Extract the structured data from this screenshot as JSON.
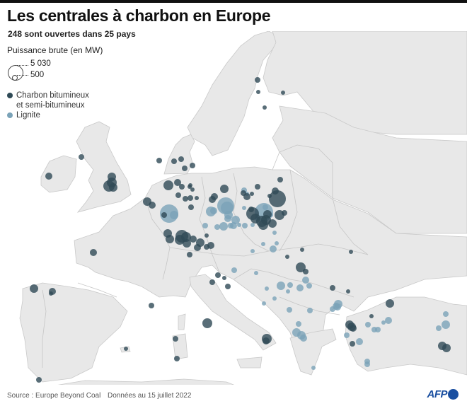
{
  "header": {
    "title": "Les centrales à charbon en Europe",
    "subtitle": "248 sont ouvertes dans 25 pays"
  },
  "legend": {
    "size_title": "Puissance brute (en MW)",
    "size_max": "5 030",
    "size_min": "500",
    "types": [
      {
        "label_line1": "Charbon bitumineux",
        "label_line2": "et semi-bitumineux",
        "color": "#2f4a56"
      },
      {
        "label_line1": "Lignite",
        "label_line2": "",
        "color": "#7ba3b8"
      }
    ]
  },
  "footer": {
    "source": "Source : Europe Beyond Coal",
    "date": "Données au 15 juillet 2022",
    "logo": "AFP"
  },
  "colors": {
    "bituminous": "#2f4a56",
    "lignite": "#7ba3b8",
    "land": "#e8e8e8",
    "sea": "#ffffff",
    "logo": "#1a4fa0"
  },
  "chart_data": {
    "type": "scatter",
    "title": "Les centrales à charbon en Europe",
    "subtitle": "248 sont ouvertes dans 25 pays",
    "size_legend": {
      "max_mw": 5030,
      "min_mw": 500
    },
    "series": [
      {
        "name": "Charbon bitumineux et semi-bitumineux",
        "color": "#2f4a56",
        "points": [
          [
            364,
            113,
            4
          ],
          [
            365,
            130,
            3
          ],
          [
            400,
            131,
            3
          ],
          [
            374,
            152,
            3
          ],
          [
            69,
            249,
            5
          ],
          [
            115,
            222,
            4
          ],
          [
            158,
            250,
            6
          ],
          [
            160,
            265,
            6
          ],
          [
            154,
            263,
            8
          ],
          [
            158,
            258,
            7
          ],
          [
            132,
            357,
            5
          ],
          [
            48,
            408,
            6
          ],
          [
            74,
            412,
            5
          ],
          [
            72,
            415,
            3
          ],
          [
            214,
            432,
            4
          ],
          [
            178,
            493,
            3
          ],
          [
            248,
            479,
            4
          ],
          [
            250,
            507,
            4
          ],
          [
            55,
            537,
            4
          ],
          [
            293,
            457,
            7
          ],
          [
            377,
            479,
            7
          ],
          [
            376,
            482,
            5
          ],
          [
            238,
            262,
            7
          ],
          [
            251,
            258,
            5
          ],
          [
            257,
            264,
            4
          ],
          [
            268,
            264,
            3
          ],
          [
            269,
            262,
            3
          ],
          [
            208,
            285,
            6
          ],
          [
            215,
            290,
            5
          ],
          [
            252,
            276,
            4
          ],
          [
            262,
            281,
            4
          ],
          [
            269,
            280,
            4
          ],
          [
            278,
            280,
            3
          ],
          [
            272,
            268,
            3
          ],
          [
            303,
            278,
            5
          ],
          [
            317,
            267,
            6
          ],
          [
            349,
            278,
            5
          ],
          [
            272,
            234,
            4
          ],
          [
            256,
            225,
            4
          ],
          [
            225,
            227,
            4
          ],
          [
            246,
            228,
            4
          ],
          [
            261,
            238,
            4
          ],
          [
            300,
            282,
            5
          ],
          [
            237,
            330,
            6
          ],
          [
            240,
            338,
            6
          ],
          [
            257,
            334,
            9
          ],
          [
            254,
            339,
            7
          ],
          [
            263,
            335,
            7
          ],
          [
            273,
            338,
            5
          ],
          [
            264,
            344,
            6
          ],
          [
            283,
            343,
            6
          ],
          [
            279,
            350,
            5
          ],
          [
            298,
            347,
            5
          ],
          [
            292,
            349,
            4
          ],
          [
            268,
            360,
            4
          ],
          [
            270,
            293,
            4
          ],
          [
            232,
            304,
            4
          ],
          [
            357,
            302,
            9
          ],
          [
            361,
            309,
            7
          ],
          [
            370,
            313,
            8
          ],
          [
            376,
            311,
            7
          ],
          [
            378,
            303,
            6
          ],
          [
            372,
            318,
            7
          ],
          [
            385,
            316,
            6
          ],
          [
            392,
            281,
            12
          ],
          [
            389,
            270,
            5
          ],
          [
            395,
            304,
            7
          ],
          [
            402,
            301,
            4
          ],
          [
            396,
            254,
            4
          ],
          [
            364,
            264,
            4
          ],
          [
            381,
            277,
            3
          ],
          [
            355,
            296,
            4
          ],
          [
            344,
            273,
            4
          ],
          [
            356,
            274,
            3
          ],
          [
            406,
            363,
            3
          ],
          [
            427,
            353,
            3
          ],
          [
            496,
            356,
            3
          ],
          [
            425,
            378,
            7
          ],
          [
            432,
            384,
            4
          ],
          [
            470,
            407,
            4
          ],
          [
            492,
            412,
            3
          ],
          [
            300,
            399,
            4
          ],
          [
            317,
            393,
            3
          ],
          [
            322,
            405,
            4
          ],
          [
            308,
            389,
            4
          ],
          [
            292,
            333,
            3
          ],
          [
            494,
            459,
            6
          ],
          [
            497,
            462,
            6
          ],
          [
            499,
            464,
            5
          ],
          [
            498,
            486,
            4
          ],
          [
            551,
            429,
            6
          ],
          [
            525,
            447,
            3
          ],
          [
            625,
            489,
            6
          ],
          [
            631,
            492,
            6
          ]
        ]
      },
      {
        "name": "Lignite",
        "color": "#7ba3b8",
        "points": [
          [
            239,
            302,
            13
          ],
          [
            246,
            304,
            6
          ],
          [
            298,
            299,
            7
          ],
          [
            302,
            298,
            5
          ],
          [
            319,
            291,
            12
          ],
          [
            321,
            294,
            9
          ],
          [
            323,
            304,
            6
          ],
          [
            322,
            309,
            5
          ],
          [
            316,
            320,
            6
          ],
          [
            307,
            321,
            4
          ],
          [
            330,
            319,
            5
          ],
          [
            326,
            319,
            4
          ],
          [
            338,
            318,
            3
          ],
          [
            333,
            311,
            6
          ],
          [
            346,
            319,
            4
          ],
          [
            290,
            319,
            4
          ],
          [
            345,
            294,
            3
          ],
          [
            357,
            318,
            3
          ],
          [
            375,
            293,
            4
          ],
          [
            383,
            304,
            3
          ],
          [
            363,
            309,
            3
          ],
          [
            373,
            300,
            13
          ],
          [
            386,
            352,
            5
          ],
          [
            372,
            345,
            3
          ],
          [
            391,
            344,
            3
          ],
          [
            357,
            355,
            3
          ],
          [
            388,
            329,
            3
          ],
          [
            345,
            269,
            4
          ],
          [
            349,
            274,
            3
          ],
          [
            331,
            382,
            4
          ],
          [
            362,
            386,
            3
          ],
          [
            397,
            404,
            6
          ],
          [
            410,
            403,
            4
          ],
          [
            407,
            412,
            3
          ],
          [
            377,
            408,
            3
          ],
          [
            388,
            422,
            3
          ],
          [
            409,
            438,
            4
          ],
          [
            373,
            429,
            3
          ],
          [
            424,
            407,
            5
          ],
          [
            432,
            396,
            5
          ],
          [
            437,
            404,
            4
          ],
          [
            438,
            439,
            4
          ],
          [
            470,
            437,
            4
          ],
          [
            478,
            430,
            6
          ],
          [
            477,
            434,
            5
          ],
          [
            422,
            458,
            4
          ],
          [
            419,
            470,
            6
          ],
          [
            426,
            474,
            6
          ],
          [
            429,
            478,
            5
          ],
          [
            443,
            520,
            3
          ],
          [
            490,
            474,
            4
          ],
          [
            508,
            483,
            5
          ],
          [
            520,
            459,
            4
          ],
          [
            542,
            456,
            3
          ],
          [
            549,
            453,
            5
          ],
          [
            534,
            466,
            4
          ],
          [
            529,
            466,
            4
          ],
          [
            519,
            511,
            4
          ],
          [
            519,
            515,
            4
          ],
          [
            630,
            459,
            6
          ],
          [
            630,
            444,
            4
          ],
          [
            620,
            464,
            4
          ],
          [
            475,
            433,
            5
          ]
        ]
      }
    ]
  }
}
